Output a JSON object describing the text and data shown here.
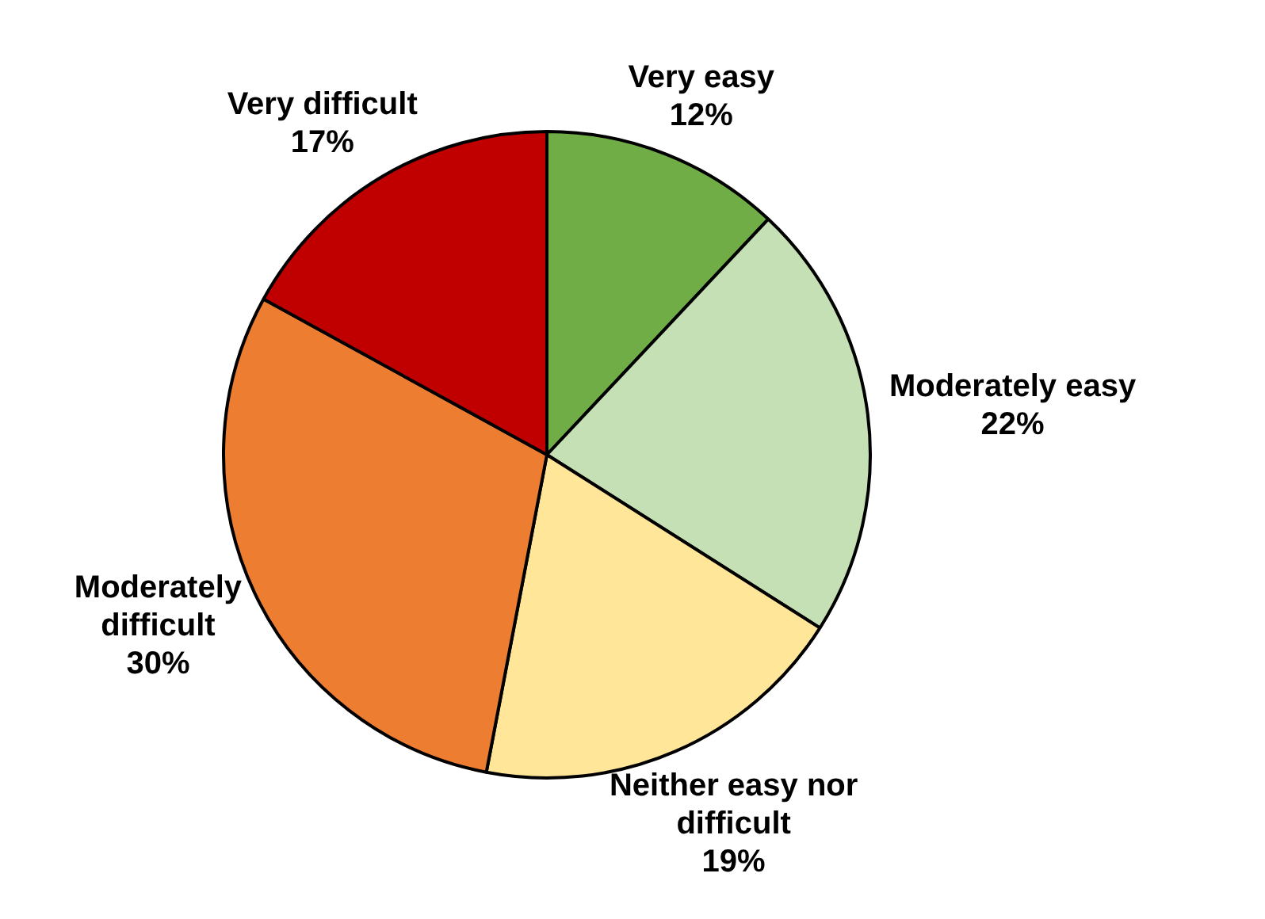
{
  "chart_data": {
    "type": "pie",
    "categories": [
      "Very easy",
      "Moderately easy",
      "Neither easy nor difficult",
      "Moderately difficult",
      "Very difficult"
    ],
    "values": [
      12,
      22,
      19,
      30,
      17
    ],
    "value_labels": [
      "12%",
      "22%",
      "19%",
      "30%",
      "17%"
    ],
    "colors": [
      "#70ad47",
      "#c5e0b4",
      "#ffe699",
      "#ed7d31",
      "#c00000"
    ],
    "legend": false
  }
}
